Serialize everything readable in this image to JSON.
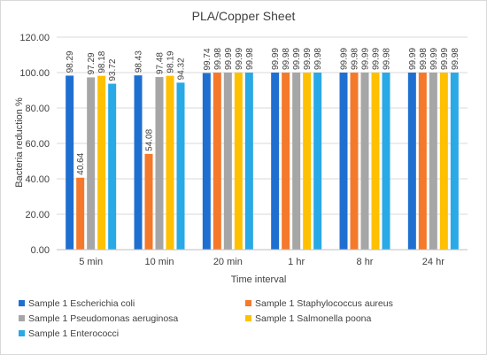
{
  "chart_data": {
    "type": "bar",
    "title": "PLA/Copper Sheet",
    "xlabel": "Time interval",
    "ylabel": "Bacteria reduction %",
    "ylim": [
      0,
      120
    ],
    "yticks": [
      "0.00",
      "20.00",
      "40.00",
      "60.00",
      "80.00",
      "100.00",
      "120.00"
    ],
    "grid": "horizontal",
    "legend_position": "bottom",
    "categories": [
      "5 min",
      "10 min",
      "20 min",
      "1 hr",
      "8 hr",
      "24 hr"
    ],
    "series": [
      {
        "name": "Sample 1 Escherichia coli",
        "color": "#1f6fd1",
        "values": [
          98.29,
          98.43,
          99.74,
          99.99,
          99.99,
          99.99
        ],
        "labels": [
          "98.29",
          "98.43",
          "99.74",
          "99.99",
          "99.99",
          "99.99"
        ]
      },
      {
        "name": "Sample 1 Staphylococcus aureus",
        "color": "#f5792a",
        "values": [
          40.64,
          54.08,
          99.98,
          99.98,
          99.98,
          99.98
        ],
        "labels": [
          "40.64",
          "54.08",
          "99.98",
          "99.98",
          "99.98",
          "99.98"
        ]
      },
      {
        "name": "Sample 1 Pseudomonas aeruginosa",
        "color": "#a6a6a6",
        "values": [
          97.29,
          97.48,
          99.99,
          99.99,
          99.99,
          99.99
        ],
        "labels": [
          "97.29",
          "97.48",
          "99.99",
          "99.99",
          "99.99",
          "99.99"
        ]
      },
      {
        "name": "Sample 1 Salmonella poona",
        "color": "#ffc000",
        "values": [
          98.18,
          98.19,
          99.99,
          99.99,
          99.99,
          99.99
        ],
        "labels": [
          "98.18",
          "98.19",
          "99.99",
          "99.99",
          "99.99",
          "99.99"
        ]
      },
      {
        "name": "Sample 1 Enterococci",
        "color": "#29a9e6",
        "values": [
          93.72,
          94.32,
          99.98,
          99.98,
          99.98,
          99.98
        ],
        "labels": [
          "93.72",
          "94.32",
          "99.98",
          "99.98",
          "99.98",
          "99.98"
        ]
      }
    ]
  }
}
